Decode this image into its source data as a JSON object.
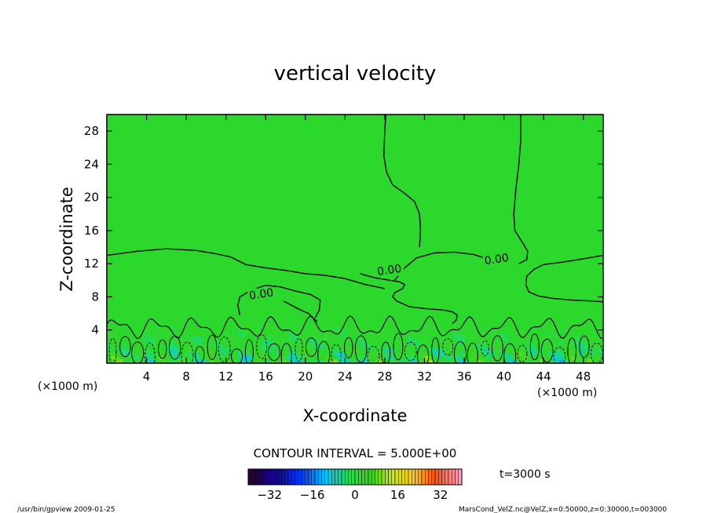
{
  "chart_data": {
    "type": "contour",
    "title": "vertical velocity",
    "xlabel": "X-coordinate",
    "ylabel": "Z-coordinate",
    "x_unit_label": "(×1000 m)",
    "y_unit_label": "(×1000 m)",
    "xlim": [
      0,
      50
    ],
    "ylim": [
      0,
      30
    ],
    "x_ticks": [
      {
        "value": 4,
        "label": "4"
      },
      {
        "value": 8,
        "label": "8"
      },
      {
        "value": 12,
        "label": "12"
      },
      {
        "value": 16,
        "label": "16"
      },
      {
        "value": 20,
        "label": "20"
      },
      {
        "value": 24,
        "label": "24"
      },
      {
        "value": 28,
        "label": "28"
      },
      {
        "value": 32,
        "label": "32"
      },
      {
        "value": 36,
        "label": "36"
      },
      {
        "value": 40,
        "label": "40"
      },
      {
        "value": 44,
        "label": "44"
      },
      {
        "value": 48,
        "label": "48"
      }
    ],
    "y_ticks": [
      {
        "value": 4,
        "label": "4"
      },
      {
        "value": 8,
        "label": "8"
      },
      {
        "value": 12,
        "label": "12"
      },
      {
        "value": 16,
        "label": "16"
      },
      {
        "value": 20,
        "label": "20"
      },
      {
        "value": 24,
        "label": "24"
      },
      {
        "value": 28,
        "label": "28"
      }
    ],
    "contour_interval_text": "CONTOUR INTERVAL = 5.000E+00",
    "time_text": "t=3000 s",
    "background_color": "#2bd82b",
    "contour_labels": [
      {
        "text": "0.00",
        "x": 15.6,
        "z": 8.0
      },
      {
        "text": "0.00",
        "x": 28.5,
        "z": 10.9
      },
      {
        "text": "0.00",
        "x": 39.3,
        "z": 12.2
      }
    ],
    "zero_contours": [
      [
        [
          0,
          13.0
        ],
        [
          3,
          13.5
        ],
        [
          6,
          13.8
        ],
        [
          9,
          13.6
        ],
        [
          11,
          13.2
        ],
        [
          12.5,
          12.8
        ],
        [
          14,
          11.9
        ],
        [
          16,
          11.5
        ],
        [
          18,
          11.2
        ],
        [
          20,
          10.8
        ],
        [
          22,
          10.6
        ],
        [
          24,
          10.2
        ],
        [
          26,
          9.5
        ],
        [
          28,
          9.0
        ]
      ],
      [
        [
          25.5,
          10.8
        ],
        [
          27,
          10.3
        ],
        [
          28.5,
          10.0
        ],
        [
          29.5,
          9.8
        ],
        [
          30.0,
          9.5
        ],
        [
          29.8,
          9.0
        ],
        [
          29.0,
          8.5
        ],
        [
          28.8,
          8.0
        ],
        [
          29.2,
          7.5
        ],
        [
          30.5,
          6.8
        ],
        [
          32,
          6.6
        ],
        [
          34,
          6.4
        ],
        [
          34.8,
          6.2
        ],
        [
          35.3,
          5.8
        ],
        [
          35.2,
          5.2
        ],
        [
          34.8,
          4.8
        ]
      ],
      [
        [
          31.5,
          14.0
        ],
        [
          31.6,
          16.0
        ],
        [
          31.5,
          18.0
        ],
        [
          31.0,
          19.5
        ],
        [
          30.0,
          20.5
        ],
        [
          28.8,
          21.5
        ],
        [
          28.2,
          23.0
        ],
        [
          27.9,
          25.0
        ],
        [
          28.0,
          28.0
        ],
        [
          28.1,
          30.0
        ]
      ],
      [
        [
          29.0,
          10.0
        ],
        [
          30.0,
          11.5
        ],
        [
          31.2,
          12.7
        ],
        [
          33,
          13.3
        ],
        [
          35,
          13.4
        ],
        [
          37,
          13.1
        ],
        [
          38.3,
          12.6
        ]
      ],
      [
        [
          41.5,
          12.0
        ],
        [
          42.3,
          12.5
        ],
        [
          42.4,
          13.5
        ],
        [
          41.9,
          14.5
        ],
        [
          41.1,
          16.0
        ],
        [
          41.0,
          18.0
        ],
        [
          41.2,
          21.0
        ],
        [
          41.5,
          24.0
        ],
        [
          41.7,
          27.0
        ],
        [
          41.7,
          30.0
        ]
      ],
      [
        [
          50,
          13.0
        ],
        [
          48,
          12.6
        ],
        [
          46,
          12.2
        ],
        [
          44,
          11.9
        ],
        [
          43,
          11.3
        ],
        [
          42.3,
          10.5
        ],
        [
          42.2,
          9.5
        ],
        [
          42.5,
          8.6
        ],
        [
          43.5,
          8.1
        ],
        [
          45,
          7.8
        ],
        [
          47,
          7.6
        ],
        [
          49,
          7.5
        ],
        [
          50,
          7.4
        ]
      ],
      [
        [
          13.4,
          5.8
        ],
        [
          13.2,
          7.0
        ],
        [
          13.4,
          8.0
        ],
        [
          14.5,
          8.8
        ],
        [
          16,
          9.4
        ],
        [
          17.5,
          9.2
        ],
        [
          19,
          8.7
        ],
        [
          20.5,
          8.3
        ],
        [
          21.5,
          7.6
        ],
        [
          21.4,
          6.4
        ],
        [
          21.0,
          5.5
        ]
      ],
      [
        [
          17.8,
          7.5
        ],
        [
          19.2,
          6.6
        ],
        [
          20.3,
          6.0
        ],
        [
          21.2,
          5.0
        ]
      ]
    ],
    "colorbar": {
      "min": -40,
      "max": 40,
      "levels": 64,
      "tick_labels": [
        {
          "value": -32,
          "label": "−32"
        },
        {
          "value": -16,
          "label": "−16"
        },
        {
          "value": 0,
          "label": "0"
        },
        {
          "value": 16,
          "label": "16"
        },
        {
          "value": 32,
          "label": "32"
        }
      ]
    }
  },
  "footer": {
    "left_text": "/usr/bin/gpview   2009-01-25",
    "right_text": "MarsCond_VelZ.nc@VelZ,x=0:50000,z=0:30000,t=003000"
  }
}
